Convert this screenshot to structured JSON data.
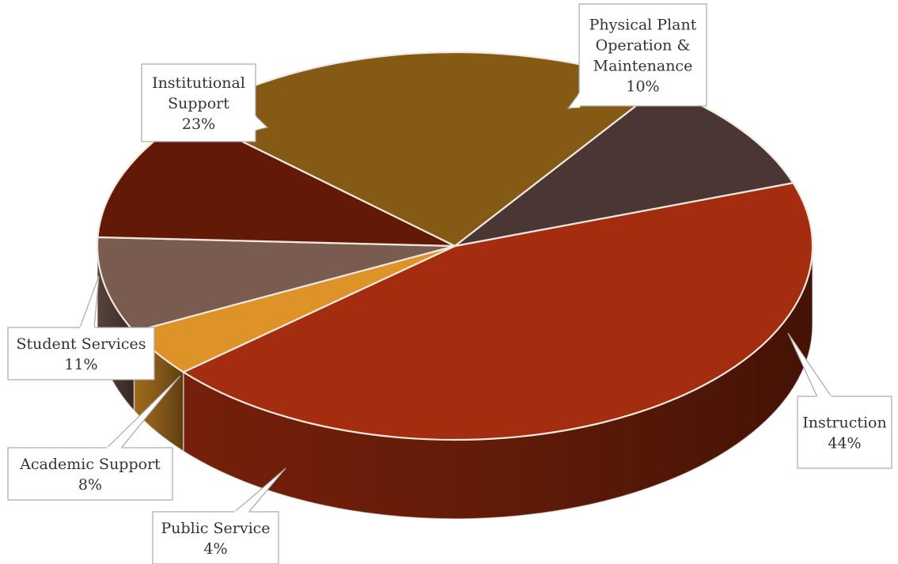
{
  "chart_data": {
    "type": "pie",
    "title": "",
    "style": "3d-pie",
    "label_position": "callouts",
    "slices": [
      {
        "label": "Instruction",
        "value": 44,
        "label_text": "44%",
        "color": "#A32D0E"
      },
      {
        "label": "Public Service",
        "value": 4,
        "label_text": "4%",
        "color": "#DD9328"
      },
      {
        "label": "Academic Support",
        "value": 8,
        "label_text": "8%",
        "color": "#7A5B50"
      },
      {
        "label": "Student Services",
        "value": 11,
        "label_text": "11%",
        "color": "#621A07"
      },
      {
        "label": "Institutional Support",
        "value": 23,
        "label_text": "23%",
        "color": "#845A14"
      },
      {
        "label": "Physical Plant Operation & Maintenance",
        "value": 10,
        "label_text": "10%",
        "color": "#4A3632"
      }
    ]
  }
}
